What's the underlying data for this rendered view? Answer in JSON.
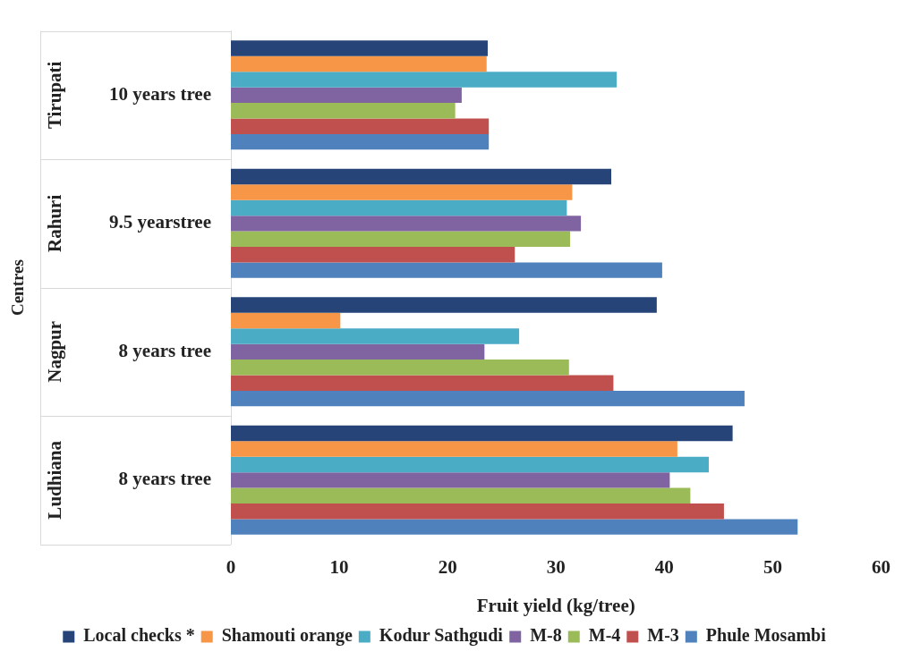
{
  "chart_data": {
    "type": "bar",
    "orientation": "horizontal",
    "xlabel": "Fruit yield (kg/tree)",
    "ylabel": "Centres",
    "categories": [
      "10 years tree",
      "9.5 yearstree",
      "8 years tree",
      "8 years tree"
    ],
    "annotations": [
      "Tirupati",
      "Rahuri",
      "Nagpur",
      "Ludhiana"
    ],
    "series": [
      {
        "name": "Local checks *",
        "color": "#264478",
        "values": [
          23.7,
          35.1,
          39.3,
          46.3
        ]
      },
      {
        "name": "Shamouti orange",
        "color": "#f79646",
        "values": [
          23.6,
          31.5,
          10.1,
          41.2
        ]
      },
      {
        "name": "Kodur Sathgudi",
        "color": "#4bacc6",
        "values": [
          35.6,
          31.0,
          26.6,
          44.1
        ]
      },
      {
        "name": "M-8",
        "color": "#8064a2",
        "values": [
          21.3,
          32.3,
          23.4,
          40.5
        ]
      },
      {
        "name": "M-4",
        "color": "#9bbb59",
        "values": [
          20.7,
          31.3,
          31.2,
          42.4
        ]
      },
      {
        "name": "M-3",
        "color": "#c0504d",
        "values": [
          23.8,
          26.2,
          35.3,
          45.5
        ]
      },
      {
        "name": "Phule Mosambi",
        "color": "#4f81bd",
        "values": [
          23.8,
          39.8,
          47.4,
          52.3
        ]
      }
    ],
    "xlim": [
      0,
      60
    ],
    "xticks": [
      0,
      10,
      20,
      30,
      40,
      50,
      60
    ],
    "grid": false,
    "legend": "bottom"
  }
}
